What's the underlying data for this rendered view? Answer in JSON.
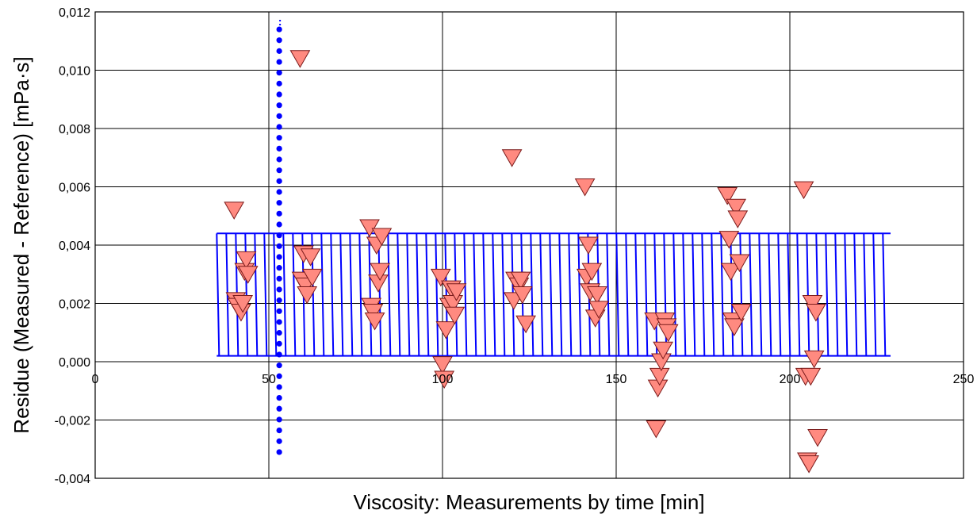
{
  "chart_data": {
    "type": "scatter",
    "title": "",
    "xlabel": "Viscosity: Measurements by time [min]",
    "ylabel": "Residue (Measured - Reference) [mPa·s]",
    "xlim": [
      0,
      250
    ],
    "ylim": [
      -0.004,
      0.012
    ],
    "x_ticks": [
      "0",
      "50",
      "100",
      "150",
      "200",
      "250"
    ],
    "y_ticks": [
      "-0,004",
      "-0,002",
      "0,000",
      "0,002",
      "0,004",
      "0,006",
      "0,008",
      "0,010",
      "0,012"
    ],
    "grid": true,
    "legend": "none",
    "colors": {
      "marker_fill": "#FF8A80",
      "marker_stroke": "#7a1a1a",
      "band": "#0000FF",
      "dots": "#0000FF"
    },
    "band": {
      "x_start": 35,
      "x_end": 229,
      "y_low": 0.0002,
      "y_high": 0.0044
    },
    "vertical_dots": {
      "x": 53,
      "y_low": -0.0031,
      "y_high": 0.0114
    },
    "series": [
      {
        "marker": "triangle-down",
        "points": [
          [
            40,
            0.0052
          ],
          [
            40.5,
            0.0021
          ],
          [
            41,
            0.0019
          ],
          [
            42,
            0.0017
          ],
          [
            42.5,
            0.002
          ],
          [
            43,
            0.0031
          ],
          [
            43.5,
            0.0035
          ],
          [
            44,
            0.003
          ],
          [
            59,
            0.0104
          ],
          [
            59.5,
            0.0028
          ],
          [
            60,
            0.0037
          ],
          [
            60.5,
            0.0026
          ],
          [
            61,
            0.0023
          ],
          [
            62,
            0.0036
          ],
          [
            62.5,
            0.0029
          ],
          [
            79,
            0.0046
          ],
          [
            79.5,
            0.0019
          ],
          [
            80,
            0.0017
          ],
          [
            80.5,
            0.0014
          ],
          [
            81,
            0.004
          ],
          [
            81.5,
            0.0027
          ],
          [
            82,
            0.0031
          ],
          [
            82.5,
            0.0043
          ],
          [
            99.5,
            0.0029
          ],
          [
            100,
            -0.0001
          ],
          [
            100.5,
            -0.0006
          ],
          [
            101,
            0.0011
          ],
          [
            102,
            0.0019
          ],
          [
            102.5,
            0.0025
          ],
          [
            103,
            0.002
          ],
          [
            103.5,
            0.0016
          ],
          [
            104,
            0.0024
          ],
          [
            120,
            0.007
          ],
          [
            120.5,
            0.0021
          ],
          [
            121,
            0.0028
          ],
          [
            122,
            0.0026
          ],
          [
            122.5,
            0.0028
          ],
          [
            123,
            0.0023
          ],
          [
            124,
            0.0013
          ],
          [
            141,
            0.006
          ],
          [
            141.5,
            0.0029
          ],
          [
            142,
            0.004
          ],
          [
            142.5,
            0.0024
          ],
          [
            143,
            0.0031
          ],
          [
            144,
            0.0015
          ],
          [
            144.5,
            0.0023
          ],
          [
            145,
            0.0018
          ],
          [
            161,
            0.0014
          ],
          [
            161.5,
            -0.0023
          ],
          [
            162,
            -0.0009
          ],
          [
            162.5,
            -0.0005
          ],
          [
            163,
            0.0
          ],
          [
            163.5,
            0.0004
          ],
          [
            164,
            0.0014
          ],
          [
            164.5,
            0.0012
          ],
          [
            165,
            0.001
          ],
          [
            182,
            0.0057
          ],
          [
            182.5,
            0.0042
          ],
          [
            183,
            0.0031
          ],
          [
            183.5,
            0.0014
          ],
          [
            184,
            0.0012
          ],
          [
            184.5,
            0.0053
          ],
          [
            185,
            0.0049
          ],
          [
            185.5,
            0.0034
          ],
          [
            186,
            0.0017
          ],
          [
            204,
            0.0059
          ],
          [
            204.5,
            -0.0005
          ],
          [
            205,
            -0.0034
          ],
          [
            205.5,
            -0.0035
          ],
          [
            206,
            -0.0005
          ],
          [
            206.5,
            0.002
          ],
          [
            207,
            0.0001
          ],
          [
            207.5,
            0.0017
          ],
          [
            208,
            -0.0026
          ]
        ]
      }
    ]
  }
}
